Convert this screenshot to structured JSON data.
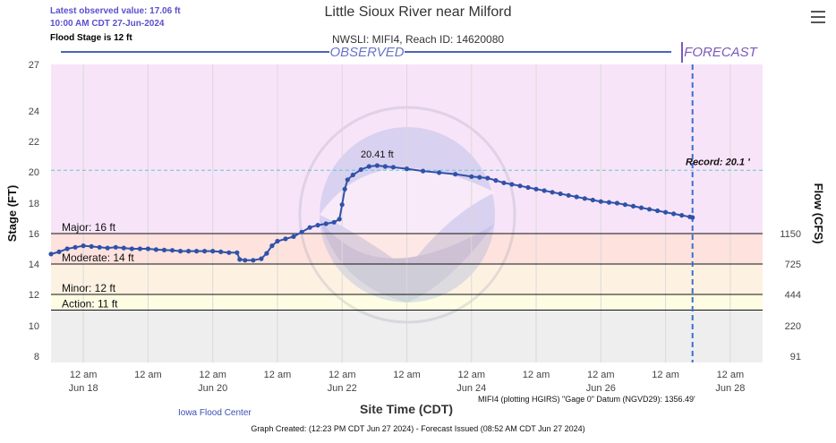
{
  "header": {
    "latest_line1": "Latest observed value: 17.06 ft",
    "latest_line2": "10:00 AM CDT 27-Jun-2024",
    "flood_stage": "Flood Stage is 12 ft",
    "title": "Little Sioux River near Milford",
    "subtitle": "NWSLI: MIFI4, Reach ID: 14620080"
  },
  "labels": {
    "observed": "OBSERVED",
    "forecast": "FORECAST",
    "record": "Record: 20.1 '",
    "peak": "20.41 ft"
  },
  "footer": {
    "credit": "Iowa Flood Center",
    "datum": "MIFI4 (plotting HGIRS) \"Gage 0\" Datum (NGVD29): 1356.49'",
    "created": "Graph Created: (12:23 PM CDT Jun 27 2024) - Forecast Issued (08:52 AM CDT Jun 27 2024)"
  },
  "colors": {
    "series": "#2f52a8",
    "major_band": "#f7d9e5",
    "moderate_band": "#fde2de",
    "minor_band": "#fdf2e2",
    "action_band": "#fefde4",
    "normal_band": "#eeeeee",
    "above_major": "#f8e4f8",
    "forecast_line": "#3a6fd0",
    "record_line": "#5ac8d8"
  },
  "chart_data": {
    "type": "line",
    "title": "Little Sioux River near Milford",
    "subtitle": "NWSLI: MIFI4, Reach ID: 14620080",
    "xlabel": "Site Time (CDT)",
    "ylabel": "Stage (FT)",
    "ylabel_right": "Flow (CFS)",
    "xlim": [
      "2024-06-17 12:00",
      "2024-06-28 12:00"
    ],
    "ylim": [
      8,
      27
    ],
    "y_ticks": [
      8,
      10,
      12,
      14,
      16,
      18,
      20,
      22,
      24,
      27
    ],
    "x_ticks": [
      {
        "t": "2024-06-18 00:00",
        "line1": "12 am",
        "line2": "Jun 18"
      },
      {
        "t": "2024-06-19 00:00",
        "line1": "12 am",
        "line2": ""
      },
      {
        "t": "2024-06-20 00:00",
        "line1": "12 am",
        "line2": "Jun 20"
      },
      {
        "t": "2024-06-21 00:00",
        "line1": "12 am",
        "line2": ""
      },
      {
        "t": "2024-06-22 00:00",
        "line1": "12 am",
        "line2": "Jun 22"
      },
      {
        "t": "2024-06-23 00:00",
        "line1": "12 am",
        "line2": ""
      },
      {
        "t": "2024-06-24 00:00",
        "line1": "12 am",
        "line2": "Jun 24"
      },
      {
        "t": "2024-06-25 00:00",
        "line1": "12 am",
        "line2": ""
      },
      {
        "t": "2024-06-26 00:00",
        "line1": "12 am",
        "line2": "Jun 26"
      },
      {
        "t": "2024-06-27 00:00",
        "line1": "12 am",
        "line2": ""
      },
      {
        "t": "2024-06-28 00:00",
        "line1": "12 am",
        "line2": "Jun 28"
      }
    ],
    "flow_ticks": [
      {
        "stage": 16,
        "flow": "1150"
      },
      {
        "stage": 14,
        "flow": "725"
      },
      {
        "stage": 12,
        "flow": "444"
      },
      {
        "stage": 10,
        "flow": "220"
      },
      {
        "stage": 8,
        "flow": "91"
      }
    ],
    "thresholds": [
      {
        "name": "Major",
        "label": "Major: 16 ft",
        "value": 16
      },
      {
        "name": "Moderate",
        "label": "Moderate: 14 ft",
        "value": 14
      },
      {
        "name": "Minor",
        "label": "Minor: 12 ft",
        "value": 12
      },
      {
        "name": "Action",
        "label": "Action: 11 ft",
        "value": 11
      }
    ],
    "record": 20.1,
    "forecast_start": "2024-06-27 10:00",
    "peak": {
      "t": "2024-06-22 13:00",
      "value": 20.41
    },
    "series": [
      {
        "name": "Observed",
        "points": [
          [
            "2024-06-17 12:00",
            14.65
          ],
          [
            "2024-06-17 15:00",
            14.8
          ],
          [
            "2024-06-17 18:00",
            15.0
          ],
          [
            "2024-06-17 21:00",
            15.1
          ],
          [
            "2024-06-18 00:00",
            15.2
          ],
          [
            "2024-06-18 03:00",
            15.15
          ],
          [
            "2024-06-18 06:00",
            15.1
          ],
          [
            "2024-06-18 09:00",
            15.05
          ],
          [
            "2024-06-18 12:00",
            15.1
          ],
          [
            "2024-06-18 15:00",
            15.05
          ],
          [
            "2024-06-18 18:00",
            15.0
          ],
          [
            "2024-06-18 21:00",
            15.0
          ],
          [
            "2024-06-19 00:00",
            15.0
          ],
          [
            "2024-06-19 03:00",
            14.95
          ],
          [
            "2024-06-19 06:00",
            14.92
          ],
          [
            "2024-06-19 09:00",
            14.9
          ],
          [
            "2024-06-19 12:00",
            14.85
          ],
          [
            "2024-06-19 15:00",
            14.85
          ],
          [
            "2024-06-19 18:00",
            14.85
          ],
          [
            "2024-06-19 21:00",
            14.85
          ],
          [
            "2024-06-20 00:00",
            14.85
          ],
          [
            "2024-06-20 03:00",
            14.8
          ],
          [
            "2024-06-20 06:00",
            14.75
          ],
          [
            "2024-06-20 09:00",
            14.75
          ],
          [
            "2024-06-20 10:00",
            14.3
          ],
          [
            "2024-06-20 12:00",
            14.25
          ],
          [
            "2024-06-20 15:00",
            14.25
          ],
          [
            "2024-06-20 18:00",
            14.35
          ],
          [
            "2024-06-20 20:00",
            14.7
          ],
          [
            "2024-06-20 22:00",
            15.2
          ],
          [
            "2024-06-21 00:00",
            15.5
          ],
          [
            "2024-06-21 03:00",
            15.65
          ],
          [
            "2024-06-21 06:00",
            15.8
          ],
          [
            "2024-06-21 09:00",
            16.1
          ],
          [
            "2024-06-21 12:00",
            16.4
          ],
          [
            "2024-06-21 15:00",
            16.55
          ],
          [
            "2024-06-21 18:00",
            16.65
          ],
          [
            "2024-06-21 21:00",
            16.75
          ],
          [
            "2024-06-21 23:00",
            16.95
          ],
          [
            "2024-06-22 00:00",
            17.9
          ],
          [
            "2024-06-22 01:00",
            18.9
          ],
          [
            "2024-06-22 02:00",
            19.5
          ],
          [
            "2024-06-22 04:00",
            19.8
          ],
          [
            "2024-06-22 07:00",
            20.15
          ],
          [
            "2024-06-22 10:00",
            20.35
          ],
          [
            "2024-06-22 13:00",
            20.41
          ],
          [
            "2024-06-22 16:00",
            20.35
          ],
          [
            "2024-06-22 19:00",
            20.3
          ],
          [
            "2024-06-23 00:00",
            20.2
          ],
          [
            "2024-06-23 06:00",
            20.05
          ],
          [
            "2024-06-23 12:00",
            19.95
          ],
          [
            "2024-06-23 18:00",
            19.85
          ],
          [
            "2024-06-24 00:00",
            19.7
          ],
          [
            "2024-06-24 03:00",
            19.65
          ],
          [
            "2024-06-24 06:00",
            19.6
          ],
          [
            "2024-06-24 09:00",
            19.45
          ],
          [
            "2024-06-24 12:00",
            19.3
          ],
          [
            "2024-06-24 15:00",
            19.2
          ],
          [
            "2024-06-24 18:00",
            19.1
          ],
          [
            "2024-06-24 21:00",
            19.0
          ],
          [
            "2024-06-25 00:00",
            18.9
          ],
          [
            "2024-06-25 03:00",
            18.8
          ],
          [
            "2024-06-25 06:00",
            18.7
          ],
          [
            "2024-06-25 09:00",
            18.6
          ],
          [
            "2024-06-25 12:00",
            18.5
          ],
          [
            "2024-06-25 15:00",
            18.4
          ],
          [
            "2024-06-25 18:00",
            18.3
          ],
          [
            "2024-06-25 21:00",
            18.2
          ],
          [
            "2024-06-26 00:00",
            18.1
          ],
          [
            "2024-06-26 03:00",
            18.05
          ],
          [
            "2024-06-26 06:00",
            18.0
          ],
          [
            "2024-06-26 09:00",
            17.9
          ],
          [
            "2024-06-26 12:00",
            17.8
          ],
          [
            "2024-06-26 15:00",
            17.7
          ],
          [
            "2024-06-26 18:00",
            17.6
          ],
          [
            "2024-06-26 21:00",
            17.5
          ],
          [
            "2024-06-27 00:00",
            17.4
          ],
          [
            "2024-06-27 03:00",
            17.3
          ],
          [
            "2024-06-27 06:00",
            17.2
          ],
          [
            "2024-06-27 09:00",
            17.1
          ],
          [
            "2024-06-27 10:00",
            17.06
          ]
        ]
      }
    ]
  }
}
